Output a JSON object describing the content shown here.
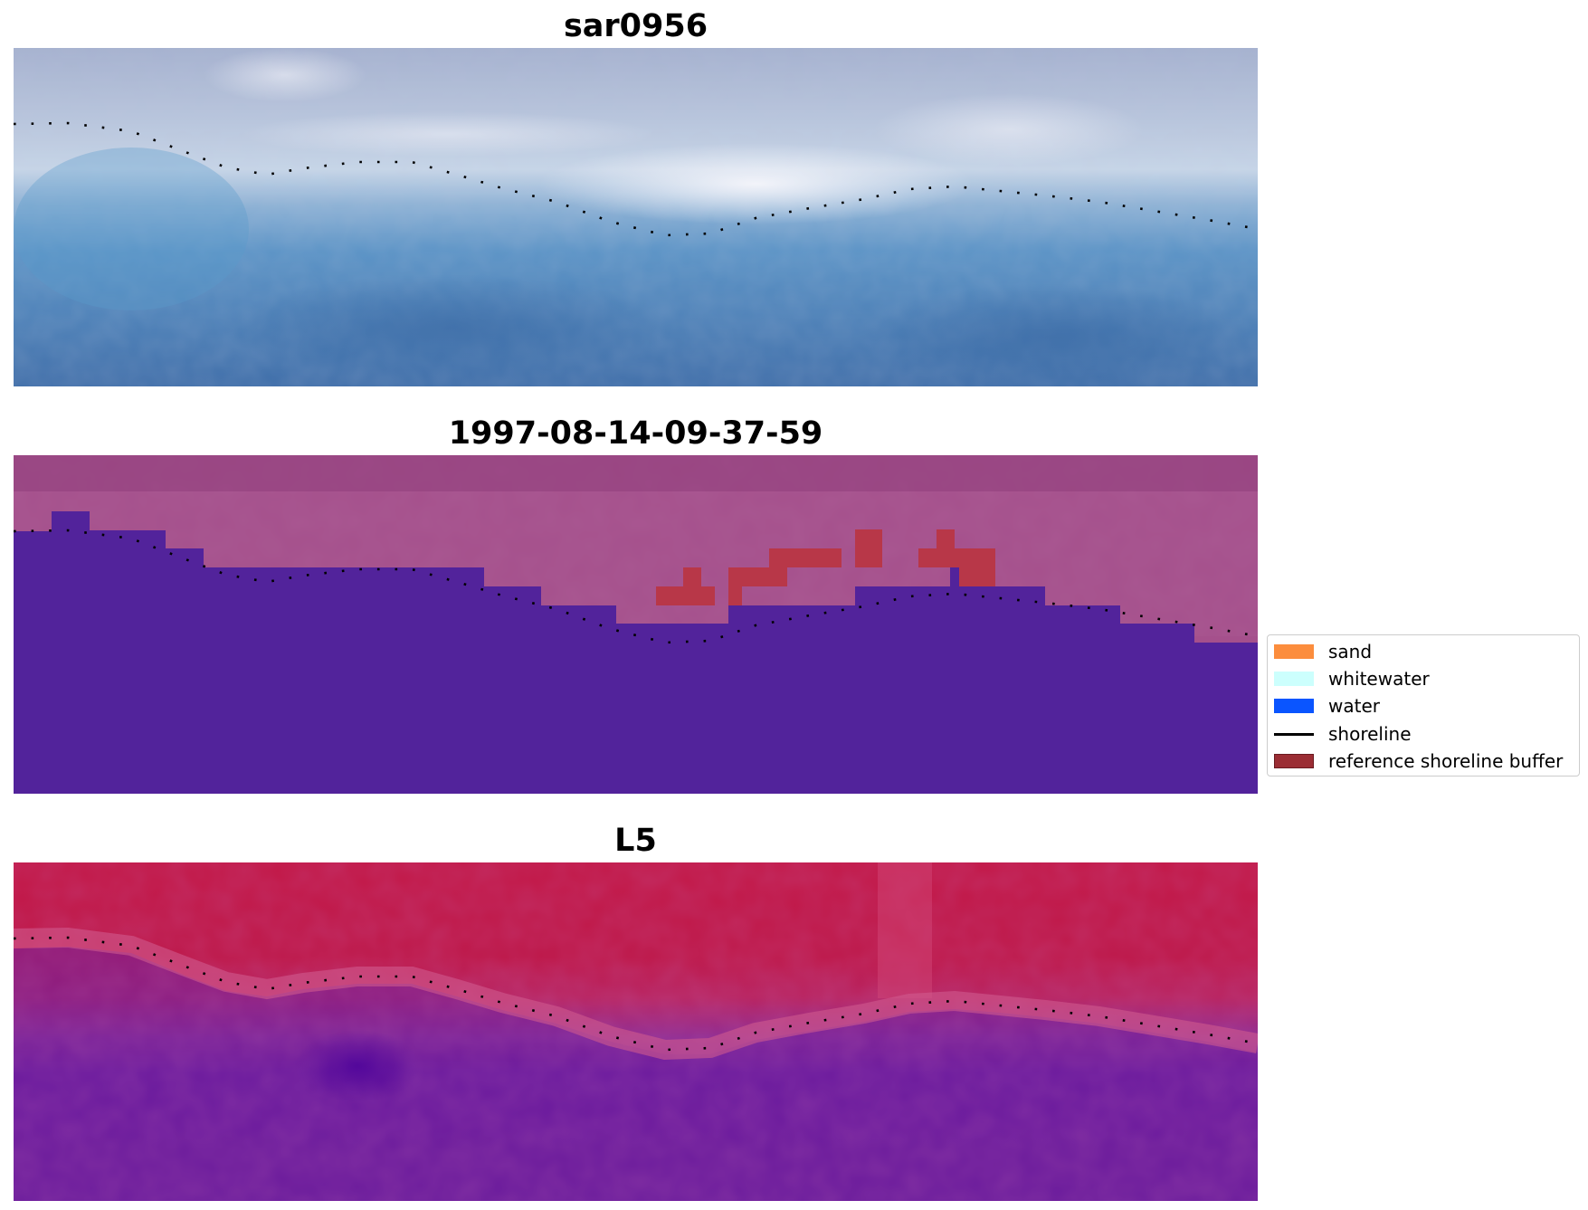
{
  "panels": [
    {
      "title": "sar0956",
      "kind": "rgb"
    },
    {
      "title": "1997-08-14-09-37-59",
      "kind": "classified"
    },
    {
      "title": "L5",
      "kind": "falsecolor"
    }
  ],
  "legend": {
    "items": [
      {
        "label": "sand",
        "color": "#fc8d3d",
        "type": "patch"
      },
      {
        "label": "whitewater",
        "color": "#ccfffd",
        "type": "patch"
      },
      {
        "label": "water",
        "color": "#0a55ff",
        "type": "patch"
      },
      {
        "label": "shoreline",
        "color": "#000000",
        "type": "line"
      },
      {
        "label": "reference shoreline buffer",
        "color": "#9b2d34",
        "type": "patch"
      }
    ]
  },
  "colors": {
    "classified_water": "#52239b",
    "buffer_red": "#b83748",
    "shoreline_dots": "#000000"
  }
}
